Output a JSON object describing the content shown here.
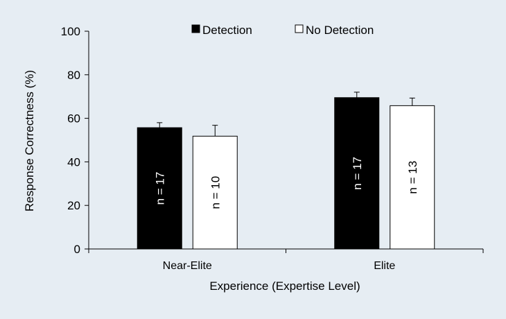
{
  "chart_data": {
    "type": "bar",
    "categories": [
      "Near-Elite",
      "Elite"
    ],
    "series": [
      {
        "name": "Detection",
        "values": [
          55.7,
          69.5
        ],
        "error": [
          2.3,
          2.5
        ],
        "bar_labels": [
          "n = 17",
          "n = 17"
        ],
        "fill": "#000000",
        "label_color": "#ffffff"
      },
      {
        "name": "No Detection",
        "values": [
          51.8,
          65.8
        ],
        "error": [
          5.0,
          3.5
        ],
        "bar_labels": [
          "n = 10",
          "n = 13"
        ],
        "fill": "#ffffff",
        "label_color": "#000000"
      }
    ],
    "xlabel": "Experience (Expertise Level)",
    "ylabel": "Response Correctness (%)",
    "ylim": [
      0,
      100
    ],
    "yticks": [
      "0",
      "20",
      "40",
      "60",
      "80",
      "100"
    ],
    "grid": false,
    "legend_position": "top"
  },
  "colors": {
    "background": "#e6edf3",
    "axis": "#000000"
  }
}
